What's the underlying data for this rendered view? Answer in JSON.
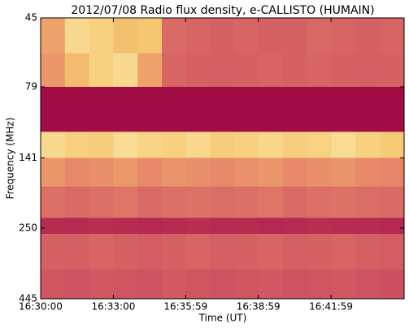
{
  "chart_data": {
    "type": "heatmap",
    "title": "2012/07/08  Radio flux density, e-CALLISTO (HUMAIN)",
    "xlabel": "Time (UT)",
    "ylabel": "Frequency (MHz)",
    "xlim": [
      "16:30:00",
      "16:45:00"
    ],
    "xticks": [
      "16:30:00",
      "16:33:00",
      "16:35:59",
      "16:38:59",
      "16:41:59"
    ],
    "yscale": "log",
    "ylim": [
      445,
      45
    ],
    "yticks": [
      45,
      79,
      141,
      250,
      445
    ],
    "x_edges": [
      "16:30:00",
      "16:31:00",
      "16:32:00",
      "16:33:00",
      "16:34:00",
      "16:35:00",
      "16:36:00",
      "16:37:00",
      "16:38:00",
      "16:39:00",
      "16:40:00",
      "16:41:00",
      "16:42:00",
      "16:43:00",
      "16:44:00",
      "16:45:00"
    ],
    "y_edges": [
      45,
      60,
      79,
      114,
      141,
      178,
      230,
      262,
      350,
      445
    ],
    "z": [
      [
        0.6,
        0.85,
        0.8,
        0.72,
        0.75,
        0.38,
        0.36,
        0.35,
        0.36,
        0.35,
        0.35,
        0.37,
        0.36,
        0.35,
        0.36
      ],
      [
        0.55,
        0.7,
        0.8,
        0.85,
        0.6,
        0.36,
        0.35,
        0.34,
        0.35,
        0.36,
        0.35,
        0.36,
        0.35,
        0.34,
        0.35
      ],
      [
        0.04,
        0.04,
        0.04,
        0.04,
        0.04,
        0.04,
        0.04,
        0.04,
        0.04,
        0.04,
        0.04,
        0.04,
        0.04,
        0.04,
        0.04
      ],
      [
        0.85,
        0.8,
        0.78,
        0.86,
        0.82,
        0.8,
        0.84,
        0.78,
        0.8,
        0.83,
        0.79,
        0.81,
        0.86,
        0.8,
        0.77
      ],
      [
        0.55,
        0.5,
        0.52,
        0.56,
        0.5,
        0.54,
        0.52,
        0.5,
        0.53,
        0.55,
        0.5,
        0.52,
        0.54,
        0.5,
        0.48
      ],
      [
        0.4,
        0.38,
        0.4,
        0.42,
        0.38,
        0.4,
        0.41,
        0.39,
        0.4,
        0.42,
        0.38,
        0.4,
        0.41,
        0.39,
        0.38
      ],
      [
        0.15,
        0.15,
        0.16,
        0.15,
        0.14,
        0.15,
        0.16,
        0.15,
        0.15,
        0.14,
        0.15,
        0.16,
        0.15,
        0.15,
        0.14
      ],
      [
        0.35,
        0.34,
        0.36,
        0.35,
        0.33,
        0.35,
        0.36,
        0.34,
        0.35,
        0.36,
        0.34,
        0.35,
        0.36,
        0.34,
        0.33
      ],
      [
        0.3,
        0.29,
        0.31,
        0.3,
        0.29,
        0.32,
        0.3,
        0.29,
        0.3,
        0.31,
        0.29,
        0.3,
        0.31,
        0.29,
        0.28
      ]
    ],
    "colors": [
      "#99003f",
      "#c9485f",
      "#e88a6a",
      "#f5c770",
      "#fff5c0"
    ]
  }
}
